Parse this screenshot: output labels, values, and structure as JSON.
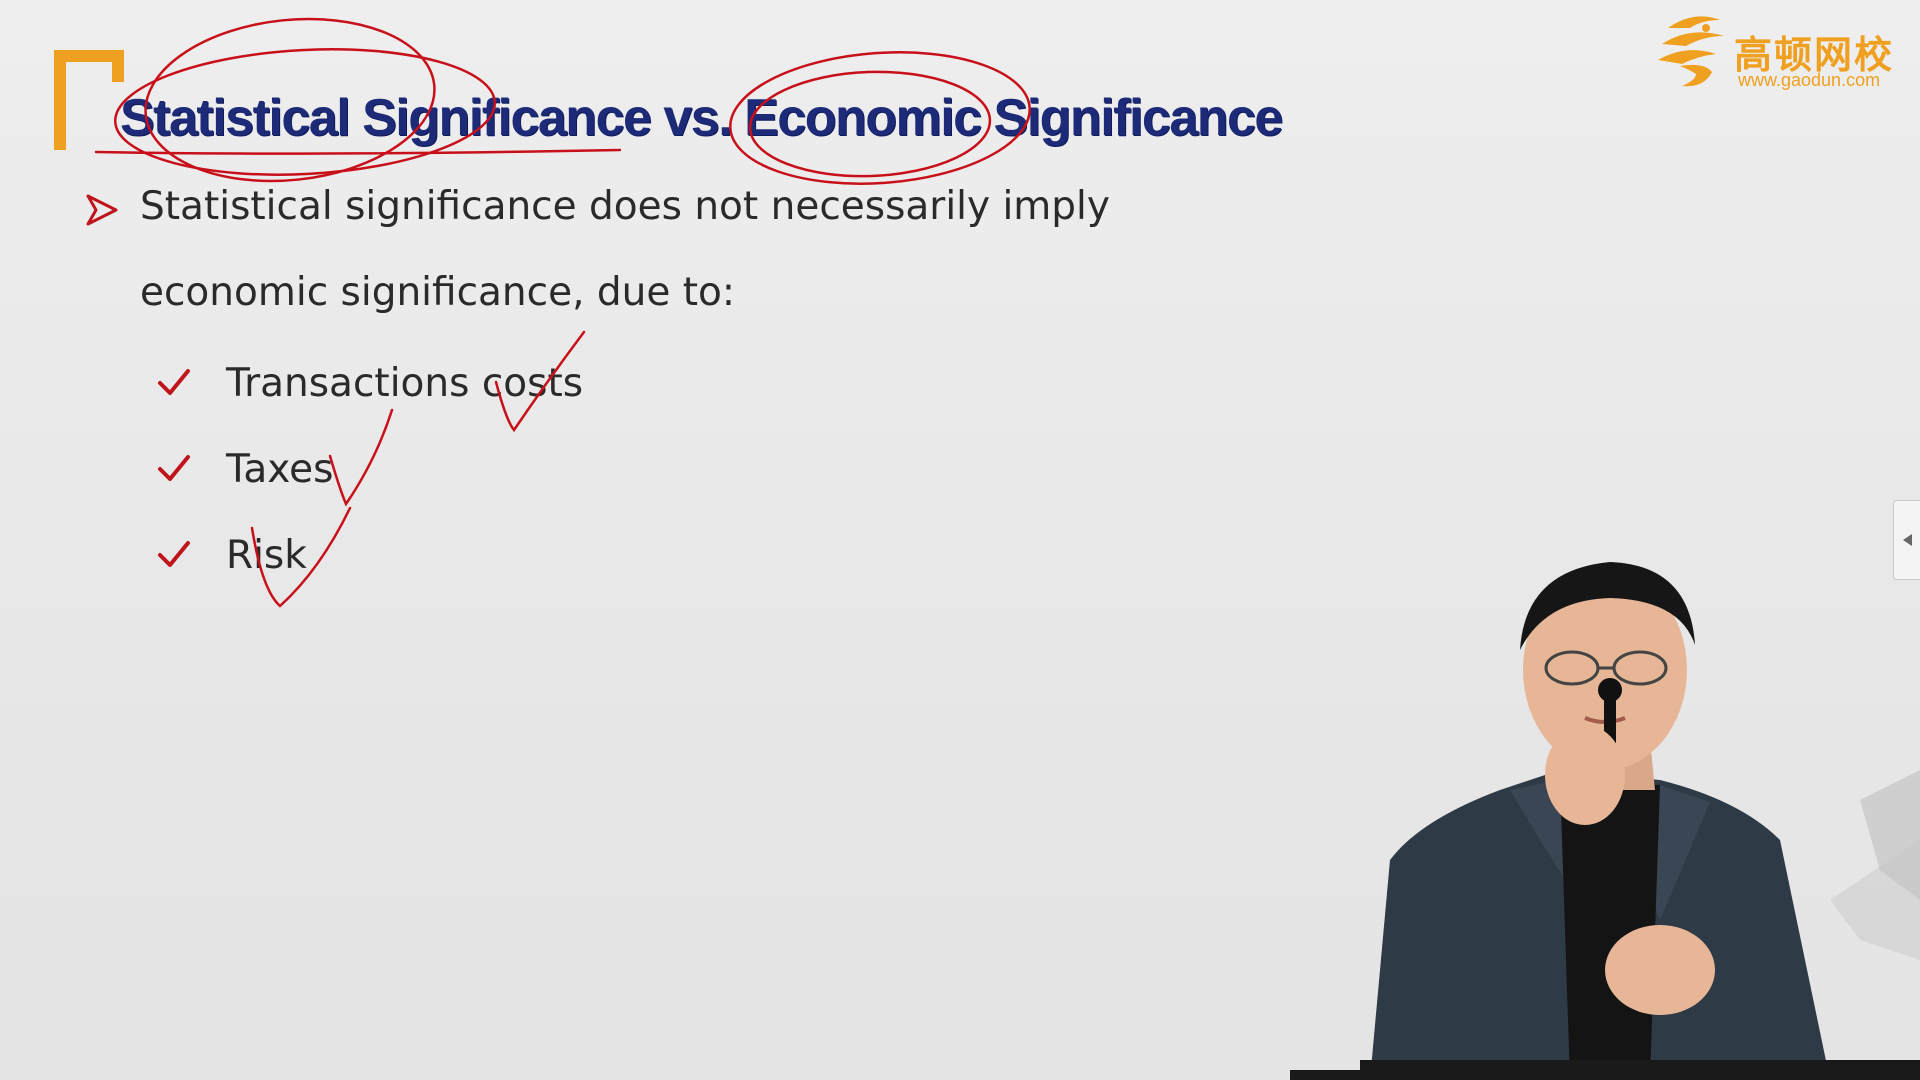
{
  "slide": {
    "title": "Statistical Significance vs. Economic Significance",
    "bullet": "Statistical significance does not necessarily imply economic significance, due to:",
    "sub_items": [
      {
        "label": "Transactions costs"
      },
      {
        "label": "Taxes"
      },
      {
        "label": "Risk"
      }
    ]
  },
  "logo": {
    "name_cn": "高顿网校",
    "url": "www.gaodun.com"
  },
  "colors": {
    "title": "#1d2a78",
    "accent_orange": "#f0a020",
    "bullet_red": "#c0141c",
    "annotation_red": "#c8101a",
    "text": "#2a2a2a"
  },
  "icons": {
    "bullet": "arrowhead-icon",
    "sub_bullet": "checkmark-icon",
    "side_tab": "triangle-left-icon",
    "logo": "gaodun-logo-icon"
  }
}
